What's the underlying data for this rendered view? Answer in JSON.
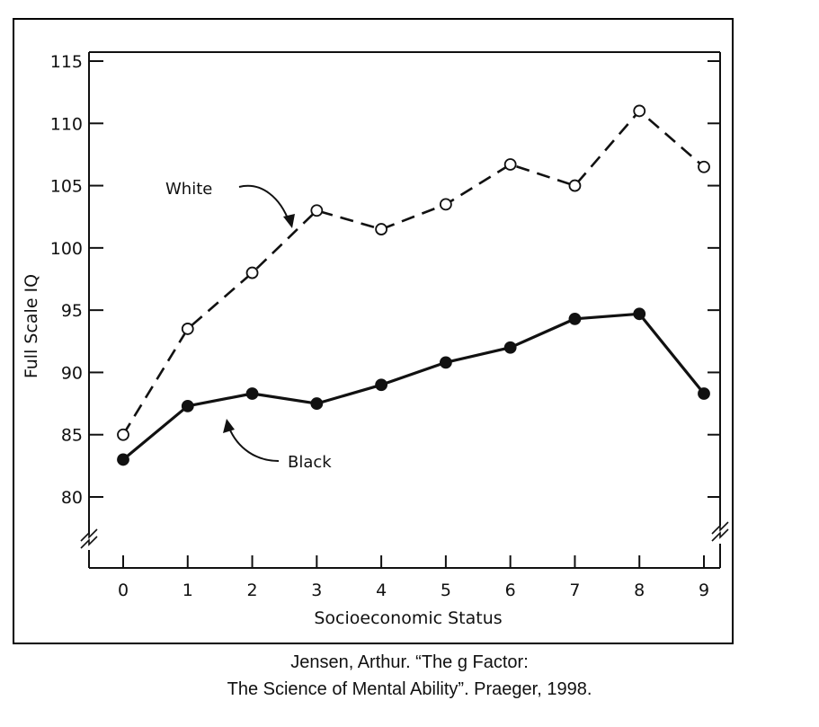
{
  "chart_data": {
    "type": "line",
    "xlabel": "Socioeconomic Status",
    "ylabel": "Full Scale IQ",
    "x": [
      0,
      1,
      2,
      3,
      4,
      5,
      6,
      7,
      8,
      9
    ],
    "xlim": [
      0,
      9
    ],
    "ylim": [
      80,
      115
    ],
    "y_ticks": [
      80,
      85,
      90,
      95,
      100,
      105,
      110,
      115
    ],
    "grid": false,
    "legend": "none",
    "series": [
      {
        "name": "White",
        "style": "dashed, open circles",
        "values": [
          85,
          93.5,
          98,
          103,
          101.5,
          103.5,
          106.7,
          105,
          111,
          106.5
        ]
      },
      {
        "name": "Black",
        "style": "solid, filled circles",
        "values": [
          83,
          87.3,
          88.3,
          87.5,
          89,
          90.8,
          92,
          94.3,
          94.7,
          88.3
        ]
      }
    ],
    "colors": {
      "line": "#111111",
      "background": "#ffffff"
    }
  },
  "caption": {
    "line1": "Jensen, Arthur. “The g Factor:",
    "line2": "The Science of Mental Ability”. Praeger, 1998."
  }
}
